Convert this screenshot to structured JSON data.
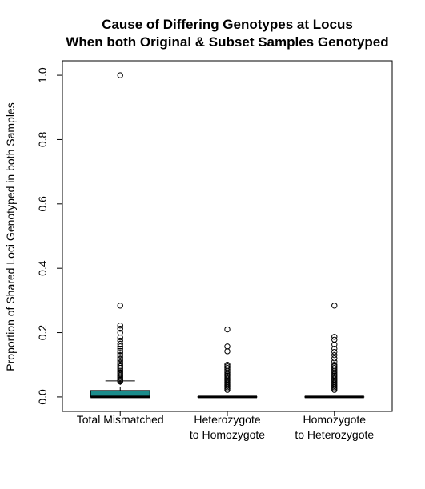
{
  "chart_data": {
    "type": "boxplot",
    "title": [
      "Cause of Differing Genotypes at Locus",
      "When both Original & Subset Samples Genotyped"
    ],
    "xlabel": "",
    "ylabel": "Proportion of Shared Loci Genotyped in both Samples",
    "ylim": [
      -0.045,
      1.045
    ],
    "yticks": [
      0.0,
      0.2,
      0.4,
      0.6,
      0.8,
      1.0
    ],
    "ytick_labels": [
      "0.0",
      "0.2",
      "0.4",
      "0.6",
      "0.8",
      "1.0"
    ],
    "grid": false,
    "legend": "none",
    "categories": [
      [
        "Total Mismatched"
      ],
      [
        "Heterozygote",
        "to Homozygote"
      ],
      [
        "Homozygote",
        "to Heterozygote"
      ]
    ],
    "boxes": [
      {
        "q1": 0.0,
        "median": 0.0,
        "q3": 0.02,
        "whisker_low": 0.0,
        "whisker_high": 0.05,
        "color": "#1b8c8c",
        "outliers": [
          1.0,
          0.284,
          0.222,
          0.212,
          0.2,
          0.185,
          0.175,
          0.165,
          0.157,
          0.15,
          0.143,
          0.137,
          0.13,
          0.124,
          0.118,
          0.112,
          0.106,
          0.1,
          0.095,
          0.09,
          0.085,
          0.08,
          0.076,
          0.072,
          0.068,
          0.064,
          0.06,
          0.056,
          0.053,
          0.05,
          0.048
        ]
      },
      {
        "q1": 0.0,
        "median": 0.0,
        "q3": 0.0,
        "whisker_low": 0.0,
        "whisker_high": 0.0,
        "color": "#1b8c8c",
        "outliers": [
          0.21,
          0.157,
          0.142,
          0.1,
          0.095,
          0.09,
          0.085,
          0.08,
          0.075,
          0.07,
          0.066,
          0.062,
          0.058,
          0.054,
          0.05,
          0.046,
          0.042,
          0.038,
          0.034,
          0.03,
          0.026,
          0.022
        ]
      },
      {
        "q1": 0.0,
        "median": 0.0,
        "q3": 0.0,
        "whisker_low": 0.0,
        "whisker_high": 0.0,
        "color": "#1b8c8c",
        "outliers": [
          0.284,
          0.187,
          0.178,
          0.163,
          0.15,
          0.14,
          0.13,
          0.12,
          0.11,
          0.1,
          0.095,
          0.09,
          0.085,
          0.08,
          0.075,
          0.07,
          0.066,
          0.062,
          0.058,
          0.054,
          0.05,
          0.046,
          0.042,
          0.038,
          0.034,
          0.03,
          0.026,
          0.022
        ]
      }
    ]
  }
}
